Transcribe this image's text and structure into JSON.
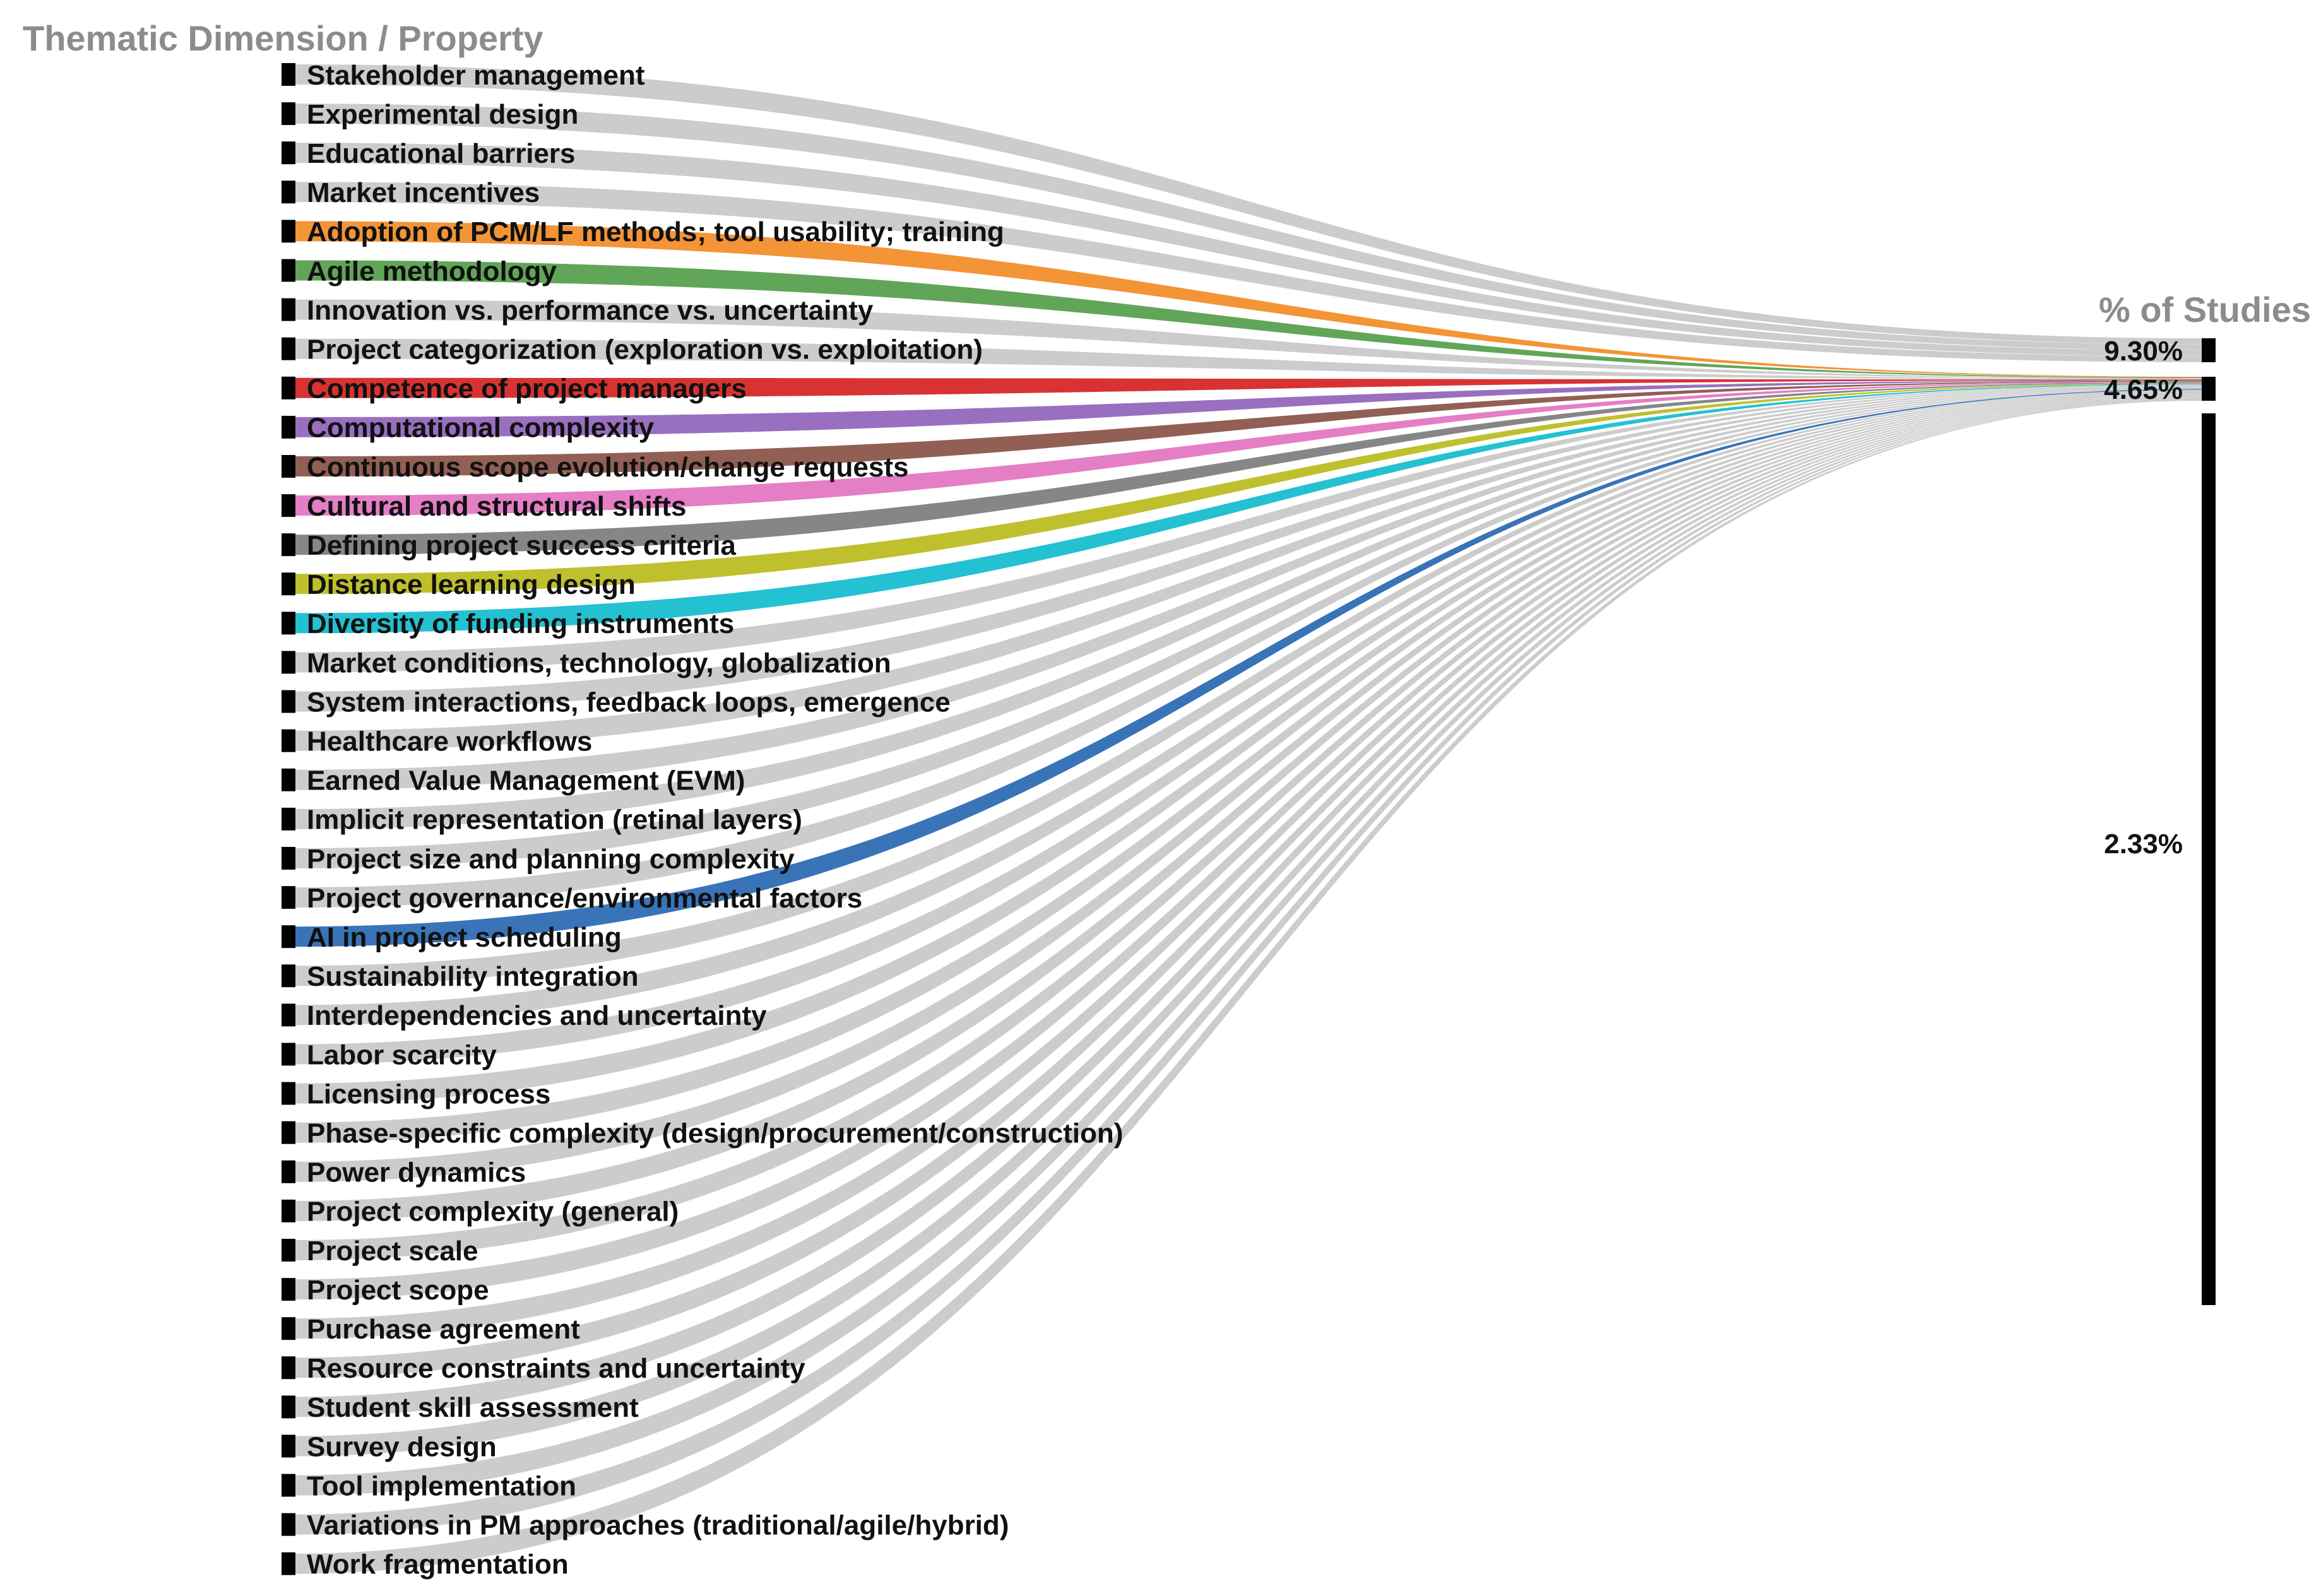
{
  "left_header": "Thematic Dimension / Property",
  "right_header": "% of Studies",
  "colors": {
    "default_flow": "#cccccc",
    "node": "#000000",
    "header": "#8c8c8c",
    "label": "#111111"
  },
  "nodes": [
    {
      "label": "Stakeholder management",
      "color": null,
      "target": 1
    },
    {
      "label": "Experimental design",
      "color": null,
      "target": 1
    },
    {
      "label": "Educational barriers",
      "color": null,
      "target": 1
    },
    {
      "label": "Market incentives",
      "color": null,
      "target": 1
    },
    {
      "label": "Adoption of PCM/LF methods; tool usability; training",
      "color": "#f28e2b",
      "target": 2
    },
    {
      "label": "Agile methodology",
      "color": "#59a14f",
      "target": 2
    },
    {
      "label": "Innovation vs. performance vs. uncertainty",
      "color": null,
      "target": 2
    },
    {
      "label": "Project categorization (exploration vs. exploitation)",
      "color": null,
      "target": 2
    },
    {
      "label": "Competence of project managers",
      "color": "#d62728",
      "target": 2
    },
    {
      "label": "Computational complexity",
      "color": "#9467bd",
      "target": 2
    },
    {
      "label": "Continuous scope evolution/change requests",
      "color": "#8c564b",
      "target": 2
    },
    {
      "label": "Cultural and structural shifts",
      "color": "#e377c2",
      "target": 2
    },
    {
      "label": "Defining project success criteria",
      "color": "#7f7f7f",
      "target": 2
    },
    {
      "label": "Distance learning design",
      "color": "#bcbd22",
      "target": 2
    },
    {
      "label": "Diversity of funding instruments",
      "color": "#17becf",
      "target": 2
    },
    {
      "label": "Market conditions, technology, globalization",
      "color": null,
      "target": 2
    },
    {
      "label": "System interactions, feedback loops, emergence",
      "color": null,
      "target": 2
    },
    {
      "label": "Healthcare workflows",
      "color": null,
      "target": 2
    },
    {
      "label": "Earned Value Management (EVM)",
      "color": null,
      "target": 2
    },
    {
      "label": "Implicit representation (retinal layers)",
      "color": null,
      "target": 2
    },
    {
      "label": "Project size and planning complexity",
      "color": null,
      "target": 2
    },
    {
      "label": "Project governance/environmental factors",
      "color": null,
      "target": 2
    },
    {
      "label": "AI in project scheduling",
      "color": "#2e6db4",
      "target": 2
    },
    {
      "label": "Sustainability integration",
      "color": null,
      "target": 2
    },
    {
      "label": "Interdependencies and uncertainty",
      "color": null,
      "target": 2
    },
    {
      "label": "Labor scarcity",
      "color": null,
      "target": 2
    },
    {
      "label": "Licensing process",
      "color": null,
      "target": 2
    },
    {
      "label": "Phase-specific complexity (design/procurement/construction)",
      "color": null,
      "target": 2
    },
    {
      "label": "Power dynamics",
      "color": null,
      "target": 2
    },
    {
      "label": "Project complexity (general)",
      "color": null,
      "target": 2
    },
    {
      "label": "Project scale",
      "color": null,
      "target": 2
    },
    {
      "label": "Project scope",
      "color": null,
      "target": 2
    },
    {
      "label": "Purchase agreement",
      "color": null,
      "target": 2
    },
    {
      "label": "Resource constraints and uncertainty",
      "color": null,
      "target": 2
    },
    {
      "label": "Student skill assessment",
      "color": null,
      "target": 2
    },
    {
      "label": "Survey design",
      "color": null,
      "target": 2
    },
    {
      "label": "Tool implementation",
      "color": null,
      "target": 2
    },
    {
      "label": "Variations in PM approaches (traditional/agile/hybrid)",
      "color": null,
      "target": 2
    },
    {
      "label": "Work fragmentation",
      "color": null,
      "target": 2
    }
  ],
  "targets": [
    {
      "label": "9.30%"
    },
    {
      "label": "4.65%"
    },
    {
      "label": "2.33%"
    }
  ]
}
